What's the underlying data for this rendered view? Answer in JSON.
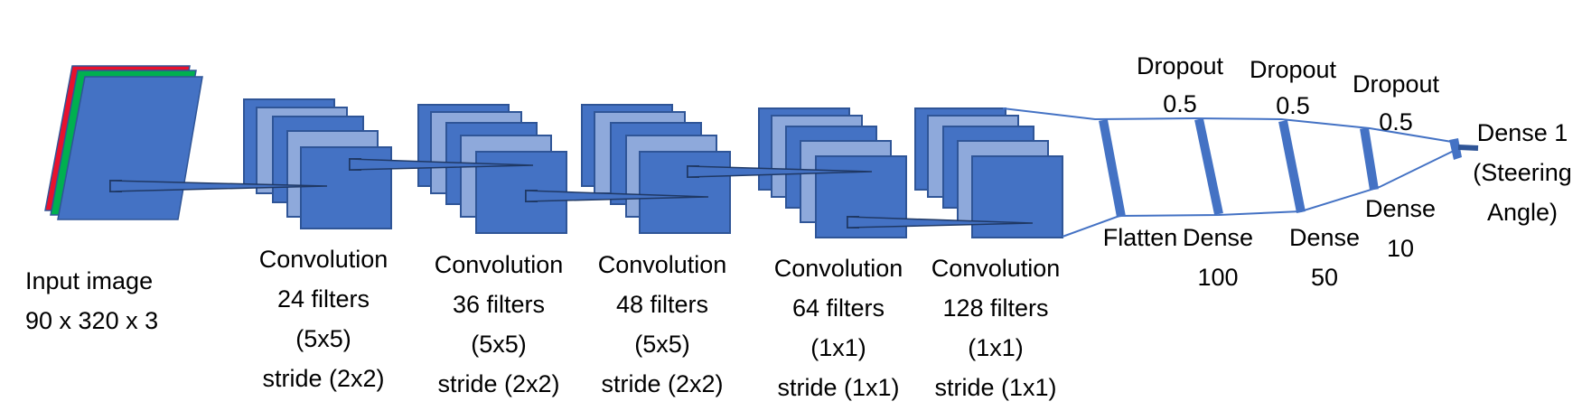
{
  "colors": {
    "layer_fill": "#4472C4",
    "layer_light": "#8EA9DB",
    "layer_stroke": "#2F5597",
    "red_channel": "#E8112D",
    "green_channel": "#00B050",
    "line": "#4472C4"
  },
  "input": {
    "line1": "Input image",
    "line2": "90 x 320 x 3"
  },
  "conv_layers": [
    {
      "title": "Convolution",
      "filters": "24 filters",
      "kernel": "(5x5)",
      "stride": "stride (2x2)"
    },
    {
      "title": "Convolution",
      "filters": "36 filters",
      "kernel": "(5x5)",
      "stride": "stride (2x2)"
    },
    {
      "title": "Convolution",
      "filters": "48 filters",
      "kernel": "(5x5)",
      "stride": "stride (2x2)"
    },
    {
      "title": "Convolution",
      "filters": "64 filters",
      "kernel": "(1x1)",
      "stride": "stride (1x1)"
    },
    {
      "title": "Convolution",
      "filters": "128 filters",
      "kernel": "(1x1)",
      "stride": "stride (1x1)"
    }
  ],
  "dense_section": {
    "flatten": "Flatten",
    "dense100": {
      "name": "Dense",
      "units": "100"
    },
    "dense50": {
      "name": "Dense",
      "units": "50"
    },
    "dense10": {
      "name": "Dense",
      "units": "10"
    },
    "dense1": {
      "name": "Dense 1",
      "note1": "(Steering",
      "note2": "Angle)"
    },
    "dropouts": [
      {
        "label": "Dropout",
        "rate": "0.5"
      },
      {
        "label": "Dropout",
        "rate": "0.5"
      },
      {
        "label": "Dropout",
        "rate": "0.5"
      }
    ]
  }
}
